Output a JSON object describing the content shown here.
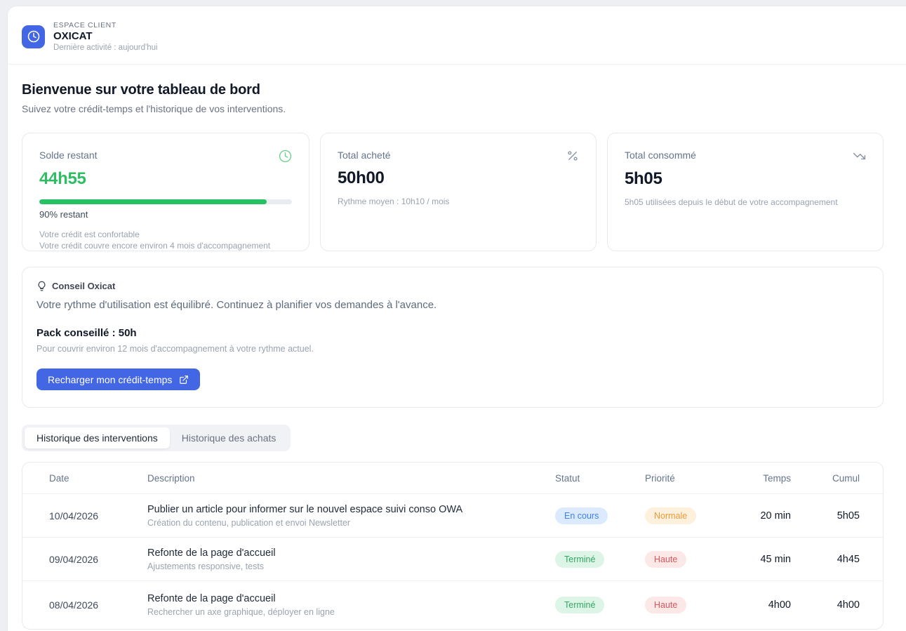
{
  "header": {
    "eyebrow": "ESPACE CLIENT",
    "brand": "OXICAT",
    "last_activity": "Dernière activité : aujourd'hui"
  },
  "page": {
    "title": "Bienvenue sur votre tableau de bord",
    "subtitle": "Suivez votre crédit-temps et l'historique de vos interventions."
  },
  "cards": [
    {
      "label": "Solde restant",
      "icon": "clock-icon",
      "value": "44h55",
      "progress_pct": 90,
      "progress_label": "90% restant",
      "note1": "Votre crédit est confortable",
      "note2": "Votre crédit couvre encore environ 4 mois d'accompagnement"
    },
    {
      "label": "Total acheté",
      "icon": "percent-icon",
      "value": "50h00",
      "note1": "Rythme moyen : 10h10 / mois"
    },
    {
      "label": "Total consommé",
      "icon": "trending-down-icon",
      "value": "5h05",
      "note1": "5h05 utilisées depuis le début de votre accompagnement"
    }
  ],
  "advice": {
    "icon": "lightbulb-icon",
    "title": "Conseil Oxicat",
    "message": "Votre rythme d'utilisation est équilibré. Continuez à planifier vos demandes à l'avance.",
    "pack_title": "Pack conseillé : 50h",
    "pack_note": "Pour couvrir environ 12 mois d'accompagnement à votre rythme actuel.",
    "button_label": "Recharger mon crédit-temps",
    "button_icon": "external-link-icon"
  },
  "tabs": [
    {
      "label": "Historique des interventions",
      "active": true
    },
    {
      "label": "Historique des achats",
      "active": false
    }
  ],
  "table": {
    "columns": [
      "Date",
      "Description",
      "Statut",
      "Priorité",
      "Temps",
      "Cumul"
    ],
    "rows": [
      {
        "date": "10/04/2026",
        "title": "Publier un article pour informer sur le nouvel espace suivi conso OWA",
        "subtitle": "Création du contenu, publication et envoi Newsletter",
        "status": "En cours",
        "status_type": "in-progress",
        "priority": "Normale",
        "priority_type": "normal",
        "time": "20 min",
        "cumul": "5h05"
      },
      {
        "date": "09/04/2026",
        "title": "Refonte de la page d'accueil",
        "subtitle": "Ajustements responsive, tests",
        "status": "Terminé",
        "status_type": "done",
        "priority": "Haute",
        "priority_type": "high",
        "time": "45 min",
        "cumul": "4h45"
      },
      {
        "date": "08/04/2026",
        "title": "Refonte de la page d'accueil",
        "subtitle": "Rechercher un axe graphique, déployer en ligne",
        "status": "Terminé",
        "status_type": "done",
        "priority": "Haute",
        "priority_type": "high",
        "time": "4h00",
        "cumul": "4h00"
      }
    ]
  },
  "colors": {
    "brand_blue": "#4366e5",
    "value_green": "#2fbd63",
    "progress_green": "#25c163",
    "status_in_progress_bg": "#dbeafe",
    "status_in_progress_text": "#3b82f6",
    "status_done_bg": "#ddf5e6",
    "status_done_text": "#34a862",
    "priority_normal_bg": "#fdf0dc",
    "priority_normal_text": "#ec9b3b",
    "priority_high_bg": "#fde8e8",
    "priority_high_text": "#e0565c",
    "page_background": "#edeff3"
  }
}
